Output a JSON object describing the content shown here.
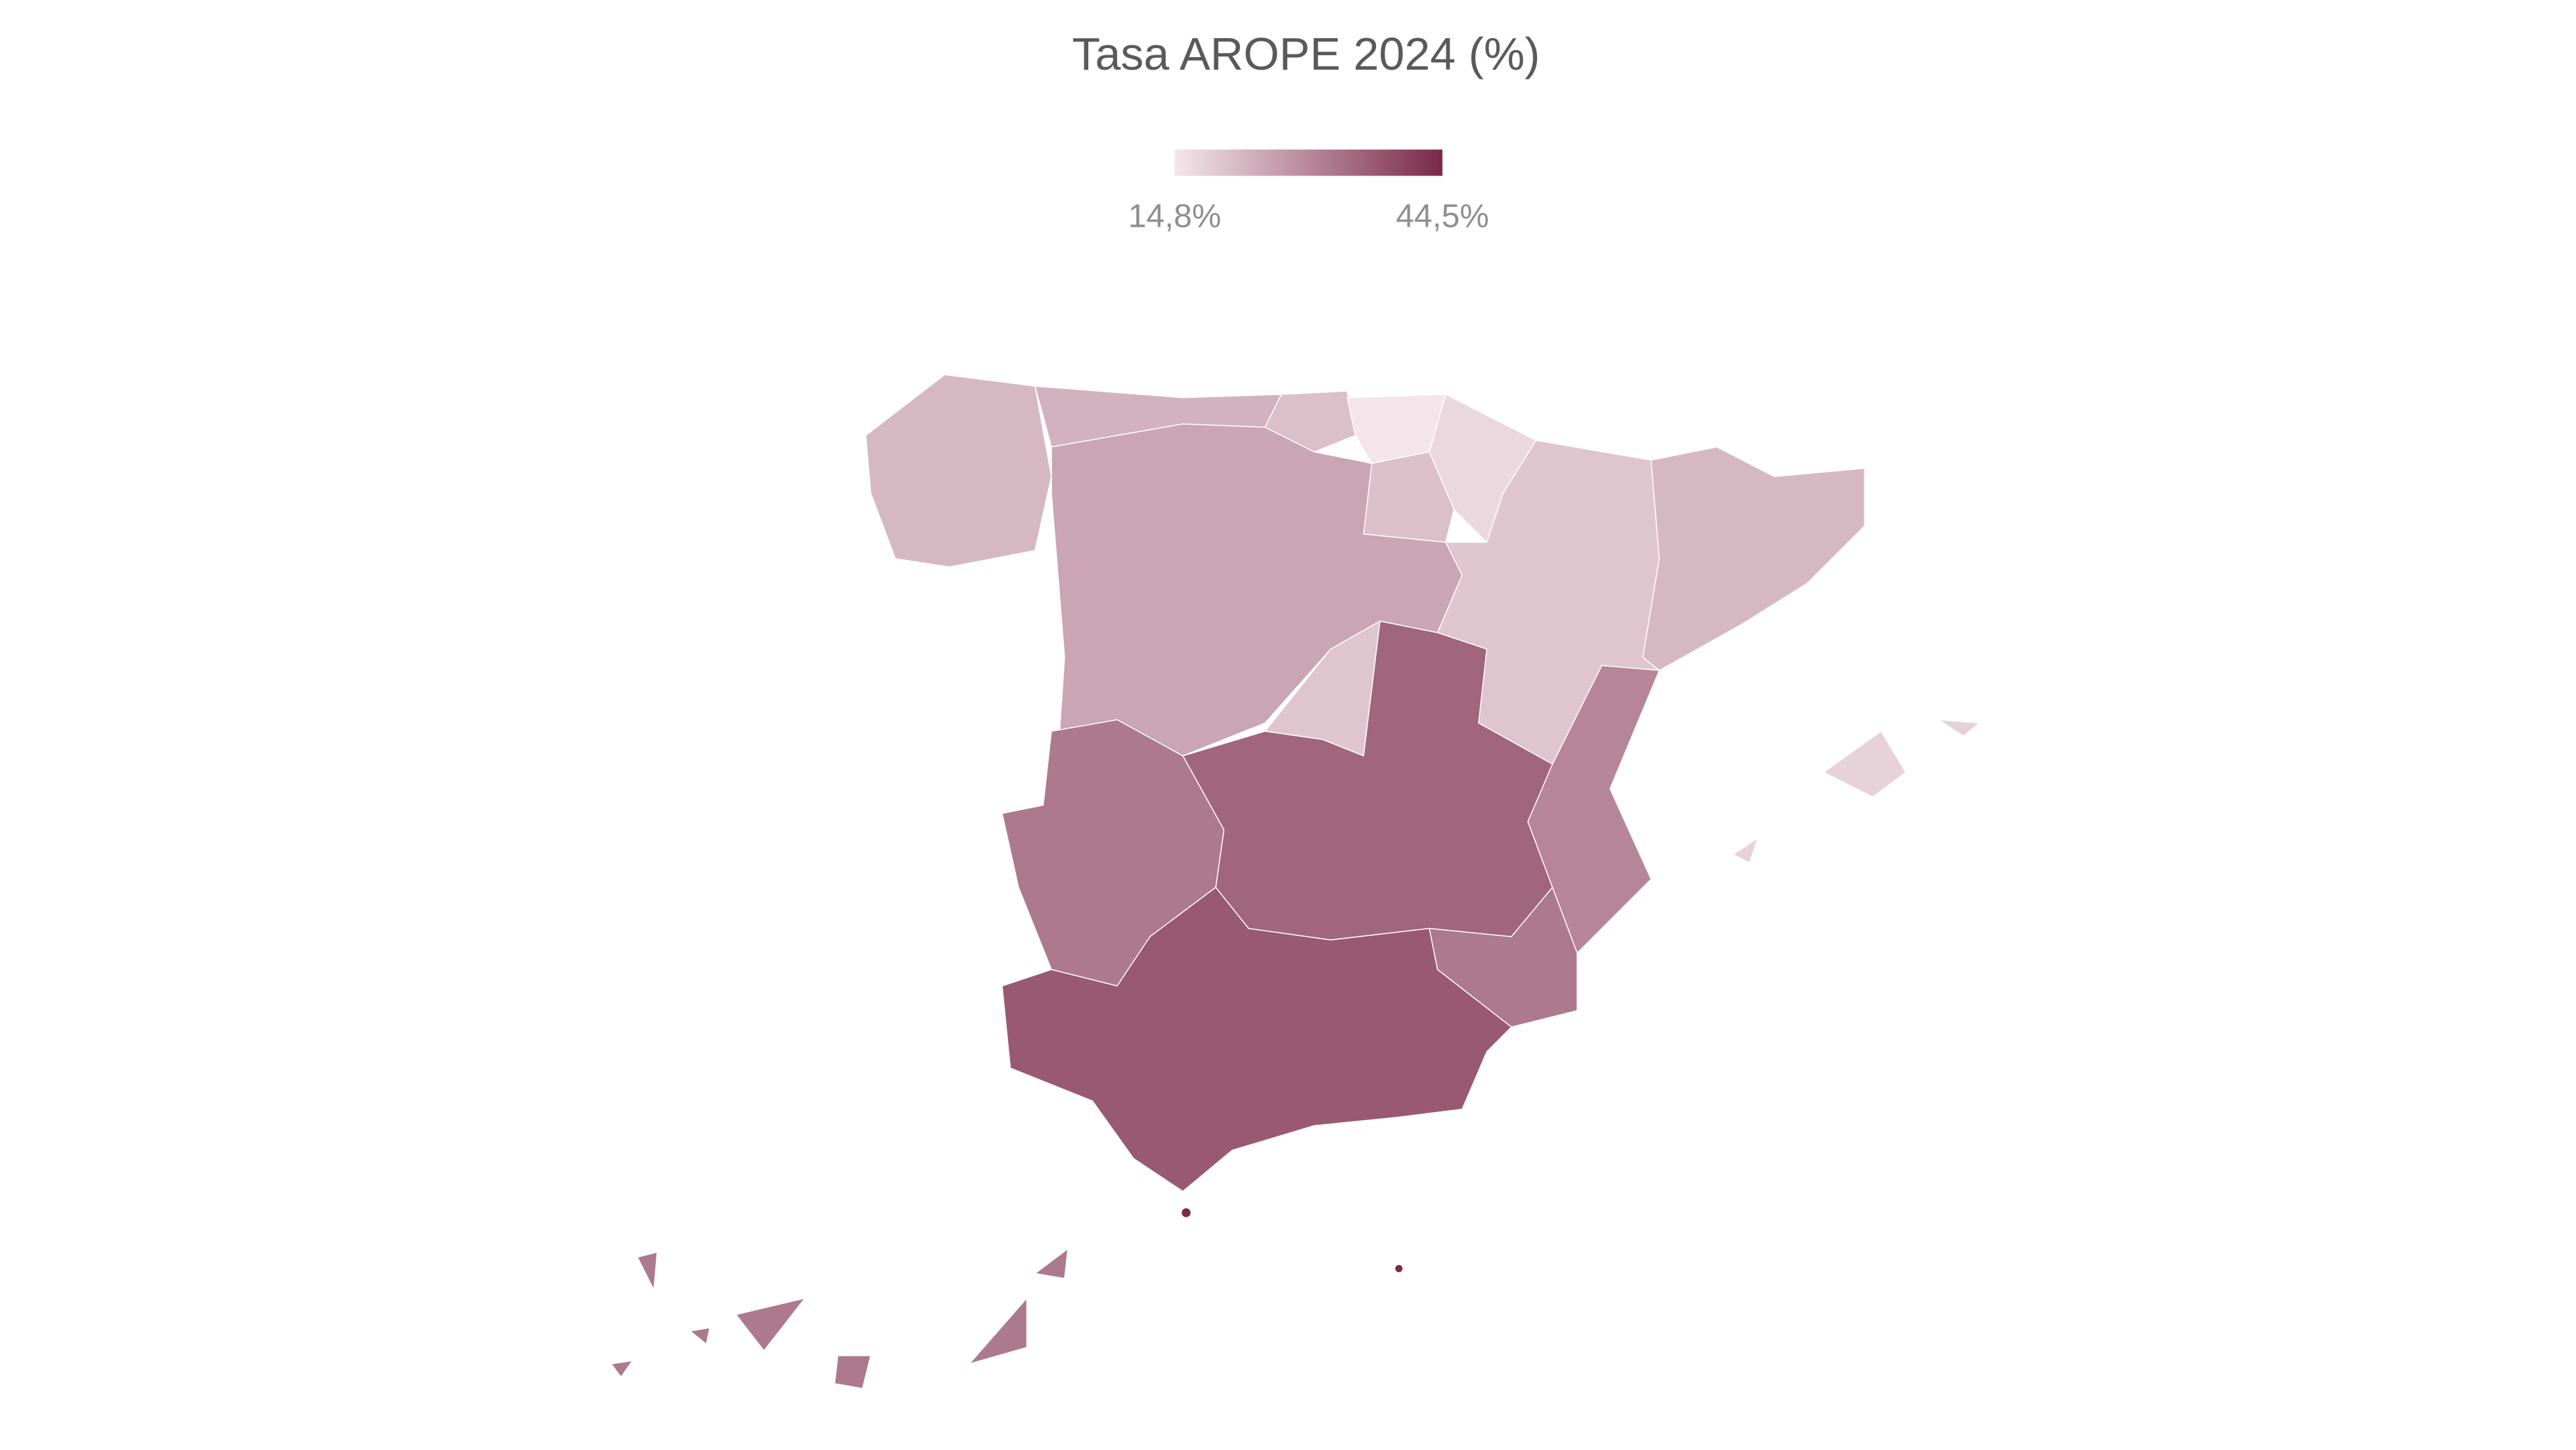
{
  "chart_data": {
    "type": "choropleth",
    "title": "Tasa AROPE 2024 (%)",
    "clim": [
      14.8,
      44.5
    ],
    "colors": [
      "#f4e6eb",
      "#7a2a48"
    ],
    "cticks": [
      {
        "value": 14.8,
        "label": "14,8%"
      },
      {
        "value": 44.5,
        "label": "44,5%"
      }
    ],
    "values": [
      22,
      23,
      21,
      15,
      17,
      21,
      25,
      20,
      22,
      20,
      35,
      32,
      30,
      32,
      37,
      18,
      32,
      44.5,
      44.5
    ]
  }
}
